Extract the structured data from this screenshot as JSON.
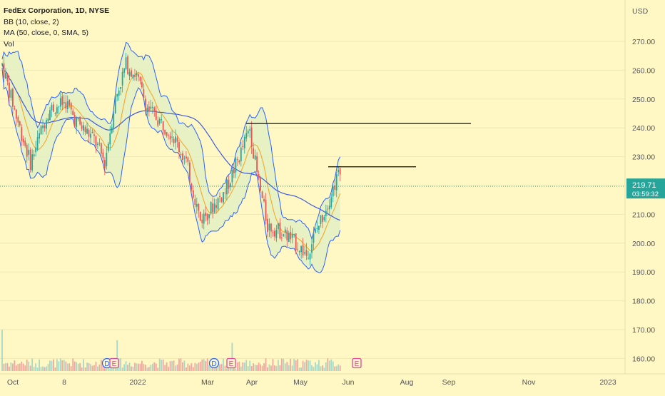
{
  "legend": {
    "title": "FedEx Corporation, 1D, NYSE",
    "bb": "BB (10, close, 2)",
    "ma": "MA (50, close, 0, SMA, 5)",
    "vol": "Vol"
  },
  "chart_data": {
    "type": "candlestick",
    "currency": "USD",
    "y_ticks": [
      "270.00",
      "260.00",
      "250.00",
      "240.00",
      "230.00",
      "220.00",
      "210.00",
      "200.00",
      "190.00",
      "180.00",
      "170.00",
      "160.00"
    ],
    "ylim": [
      156,
      276
    ],
    "x_labels": [
      "Oct",
      "8",
      "2022",
      "Mar",
      "Apr",
      "May",
      "Jun",
      "Aug",
      "Sep",
      "Nov",
      "2023"
    ],
    "last_price": "219.71",
    "countdown": "03:59:32",
    "horizontal_lines": [
      241.5,
      226.5
    ],
    "events": [
      "D",
      "E",
      "D",
      "E",
      "E"
    ],
    "colors": {
      "background": "#fff8c4",
      "up": "#26a69a",
      "down": "#ef5350",
      "bollinger": "#2962ff",
      "bollinger_fill": "#e6f0c3",
      "ma": "#f7a21b",
      "ma50": "#3d5bd6",
      "price_label": "#26a69a",
      "event_dividend": "#2962ff",
      "event_earnings": "#e0449c"
    }
  }
}
